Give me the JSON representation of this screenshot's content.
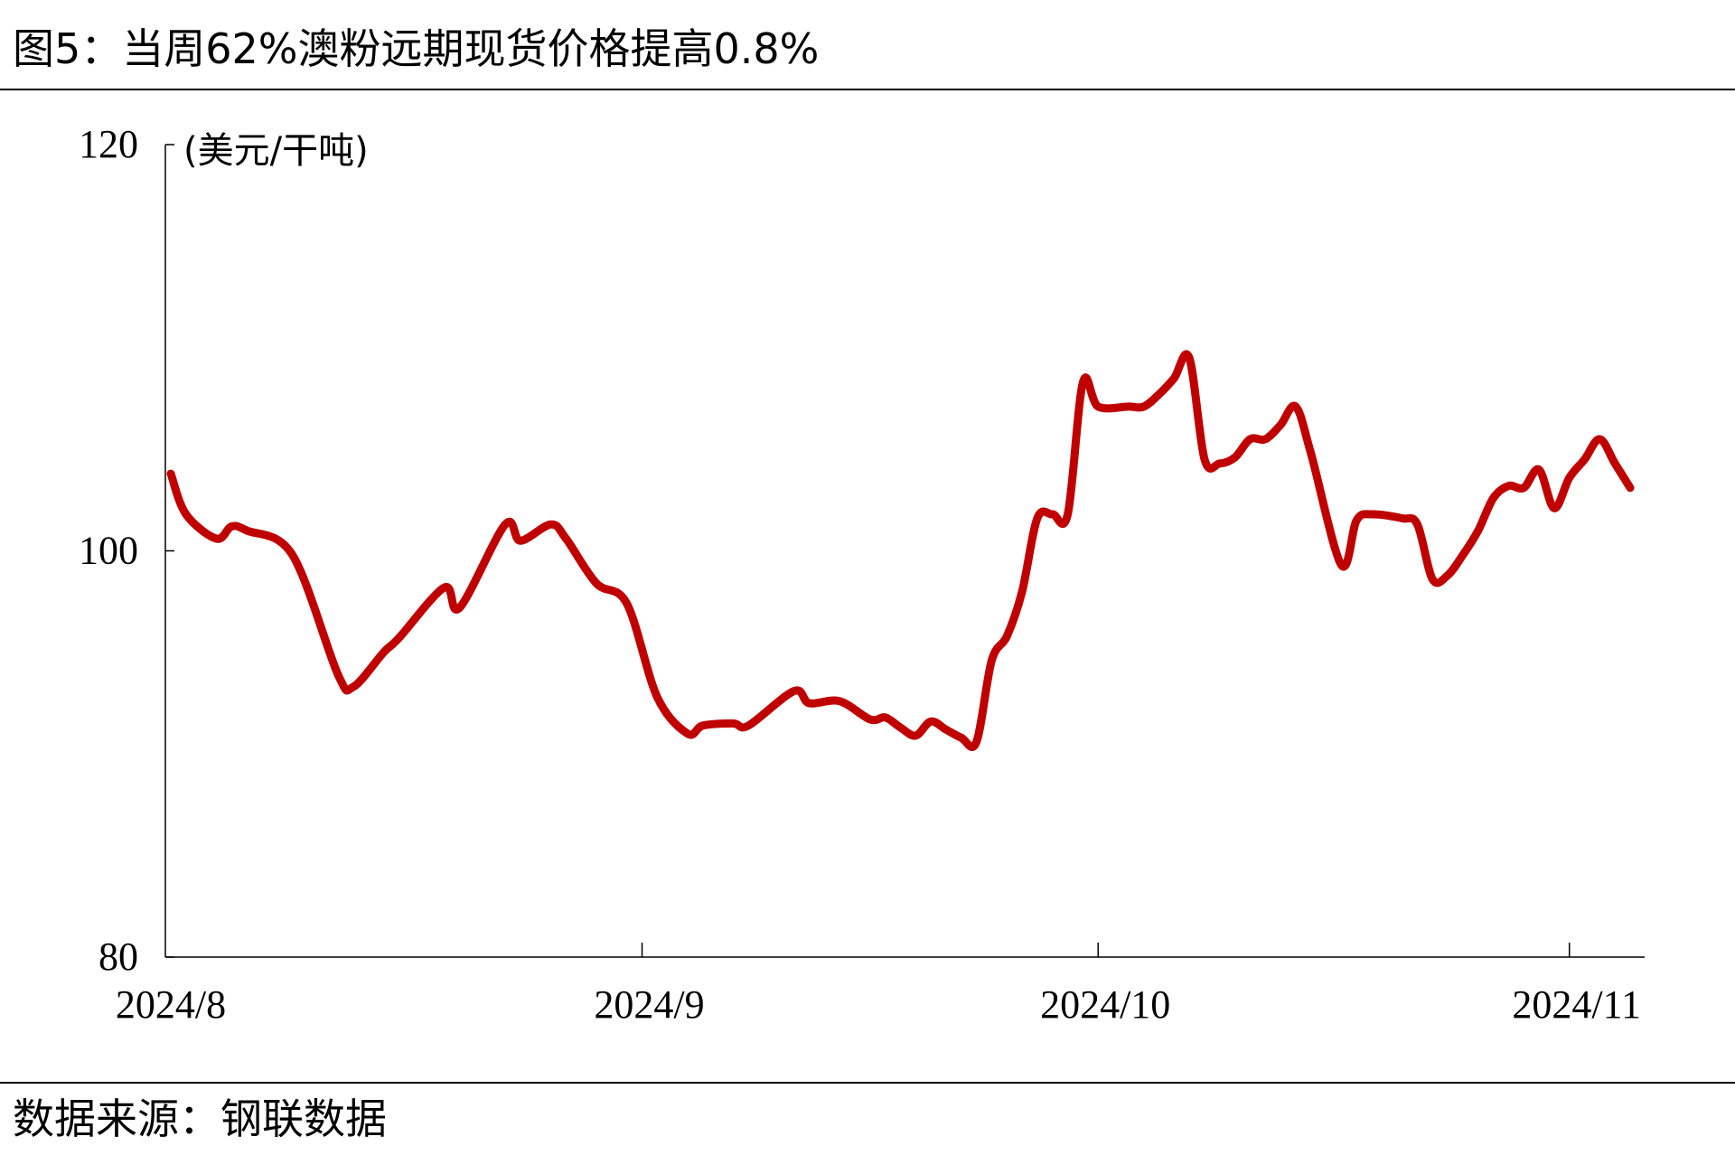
{
  "figure": {
    "title": "图5：当周62%澳粉远期现货价格提高0.8%",
    "source": "数据来源：钢联数据"
  },
  "chart_data": {
    "type": "line",
    "unit_label": "(美元/干吨)",
    "ylim": [
      80,
      120
    ],
    "y_ticks": [
      80,
      100,
      120
    ],
    "x_tick_labels": [
      {
        "label": "2024/8",
        "date": "2024-08-01"
      },
      {
        "label": "2024/9",
        "date": "2024-09-01"
      },
      {
        "label": "2024/10",
        "date": "2024-10-01"
      },
      {
        "label": "2024/11",
        "date": "2024-11-01"
      }
    ],
    "xlim": [
      "2024-08-01",
      "2024-11-05"
    ],
    "grid": false,
    "legend": "none",
    "line_color": "#c00000",
    "series": [
      {
        "dates": [
          "2024-08-01",
          "2024-08-02",
          "2024-08-04",
          "2024-08-05",
          "2024-08-06",
          "2024-08-09",
          "2024-08-12",
          "2024-08-13",
          "2024-08-15",
          "2024-08-16",
          "2024-08-19",
          "2024-08-20",
          "2024-08-23",
          "2024-08-24",
          "2024-08-26",
          "2024-08-27",
          "2024-08-29",
          "2024-08-31",
          "2024-09-02",
          "2024-09-04",
          "2024-09-05",
          "2024-09-07",
          "2024-09-08",
          "2024-09-11",
          "2024-09-12",
          "2024-09-14",
          "2024-09-16",
          "2024-09-17",
          "2024-09-18",
          "2024-09-19",
          "2024-09-20",
          "2024-09-21",
          "2024-09-22",
          "2024-09-23",
          "2024-09-24",
          "2024-09-25",
          "2024-09-26",
          "2024-09-27",
          "2024-09-28",
          "2024-09-29",
          "2024-09-30",
          "2024-10-01",
          "2024-10-03",
          "2024-10-04",
          "2024-10-05",
          "2024-10-06",
          "2024-10-07",
          "2024-10-08",
          "2024-10-09",
          "2024-10-10",
          "2024-10-11",
          "2024-10-12",
          "2024-10-13",
          "2024-10-14",
          "2024-10-15",
          "2024-10-17",
          "2024-10-18",
          "2024-10-19",
          "2024-10-21",
          "2024-10-22",
          "2024-10-23",
          "2024-10-24",
          "2024-10-25",
          "2024-10-26",
          "2024-10-27",
          "2024-10-28",
          "2024-10-29",
          "2024-10-30",
          "2024-10-31",
          "2024-11-01",
          "2024-11-02",
          "2024-11-03",
          "2024-11-04",
          "2024-11-05"
        ],
        "values": [
          103.8,
          101.8,
          100.6,
          101.2,
          101.0,
          99.8,
          93.9,
          93.3,
          95.0,
          95.7,
          98.2,
          97.2,
          101.3,
          100.5,
          101.3,
          100.6,
          98.4,
          97.4,
          92.8,
          91.0,
          91.4,
          91.5,
          91.4,
          93.1,
          92.5,
          92.6,
          91.7,
          91.8,
          91.3,
          90.9,
          91.6,
          91.2,
          90.8,
          90.6,
          94.6,
          95.8,
          98.0,
          101.6,
          101.8,
          101.8,
          108.3,
          107.1,
          107.1,
          107.1,
          107.7,
          108.5,
          109.5,
          104.5,
          104.3,
          104.6,
          105.5,
          105.5,
          106.2,
          107.1,
          104.8,
          99.3,
          101.5,
          101.8,
          101.6,
          101.3,
          98.6,
          98.8,
          99.8,
          101.0,
          102.6,
          103.2,
          103.1,
          104.0,
          102.1,
          103.6,
          104.5,
          105.5,
          104.3,
          103.1
        ]
      }
    ]
  }
}
